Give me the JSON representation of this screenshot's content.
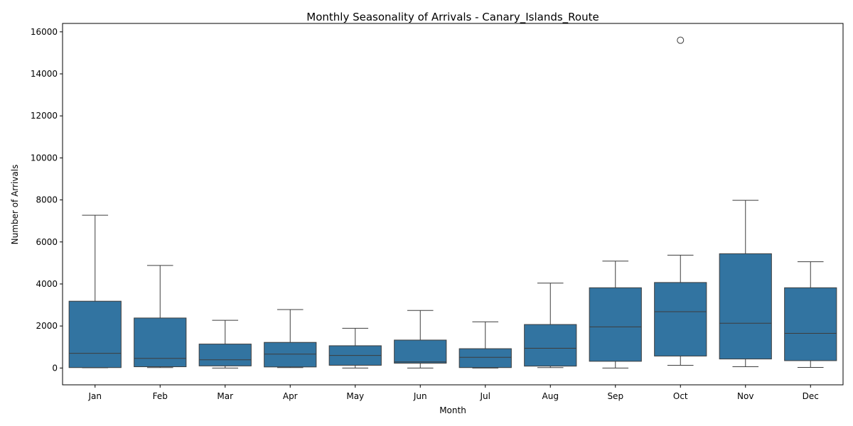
{
  "chart_data": {
    "type": "box",
    "title": "Monthly Seasonality of Arrivals - Canary_Islands_Route",
    "xlabel": "Month",
    "ylabel": "Number of Arrivals",
    "categories": [
      "Jan",
      "Feb",
      "Mar",
      "Apr",
      "May",
      "Jun",
      "Jul",
      "Aug",
      "Sep",
      "Oct",
      "Nov",
      "Dec"
    ],
    "ylim": [
      -800,
      16400
    ],
    "yticks": [
      0,
      2000,
      4000,
      6000,
      8000,
      10000,
      12000,
      14000,
      16000
    ],
    "grid": false,
    "box_color": "#3274a1",
    "line_color": "#3d3d3d",
    "boxes": [
      {
        "min": 10,
        "q1": 20,
        "median": 700,
        "q3": 3180,
        "max": 7270,
        "outliers": []
      },
      {
        "min": 20,
        "q1": 60,
        "median": 460,
        "q3": 2380,
        "max": 4880,
        "outliers": []
      },
      {
        "min": 0,
        "q1": 100,
        "median": 390,
        "q3": 1140,
        "max": 2270,
        "outliers": []
      },
      {
        "min": 20,
        "q1": 50,
        "median": 660,
        "q3": 1220,
        "max": 2780,
        "outliers": []
      },
      {
        "min": 0,
        "q1": 130,
        "median": 600,
        "q3": 1060,
        "max": 1890,
        "outliers": []
      },
      {
        "min": 0,
        "q1": 230,
        "median": 290,
        "q3": 1330,
        "max": 2740,
        "outliers": []
      },
      {
        "min": 0,
        "q1": 20,
        "median": 510,
        "q3": 920,
        "max": 2200,
        "outliers": []
      },
      {
        "min": 20,
        "q1": 90,
        "median": 940,
        "q3": 2070,
        "max": 4040,
        "outliers": []
      },
      {
        "min": 0,
        "q1": 320,
        "median": 1960,
        "q3": 3820,
        "max": 5090,
        "outliers": []
      },
      {
        "min": 130,
        "q1": 570,
        "median": 2680,
        "q3": 4070,
        "max": 5370,
        "outliers": [
          15600
        ]
      },
      {
        "min": 60,
        "q1": 430,
        "median": 2130,
        "q3": 5440,
        "max": 7980,
        "outliers": []
      },
      {
        "min": 30,
        "q1": 350,
        "median": 1650,
        "q3": 3820,
        "max": 5060,
        "outliers": []
      }
    ]
  }
}
